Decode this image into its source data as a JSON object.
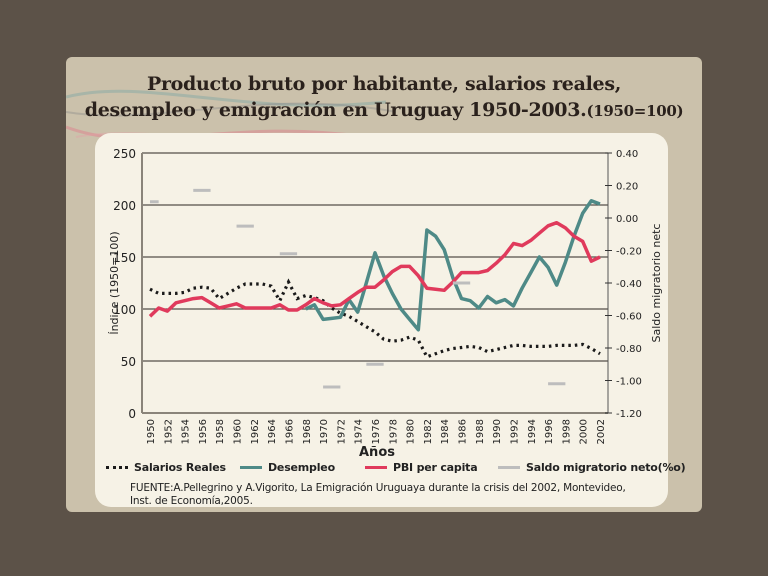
{
  "title_line1": "Producto bruto por habitante, salarios reales,",
  "title_line2": "desempleo y emigración en Uruguay 1950-2003.",
  "title_suffix": "(1950=100)",
  "source_line1": "FUENTE:A.Pellegrino y A.Vigorito, La Emigración Uruguaya durante la crisis del 2002, Montevideo,",
  "source_line2": "Inst. de Economía,2005.",
  "colors": {
    "salarios": "#1a1a1a",
    "desempleo": "#4e8a87",
    "pbi": "#e03a5c",
    "saldo": "#bdbdbd",
    "grid": "#555049"
  },
  "chart_data": {
    "type": "line",
    "title": "Producto bruto por habitante, salarios reales, desempleo y emigración en Uruguay 1950-2003.(1950=100)",
    "xlabel": "Años",
    "ylabel": "Índice (1950=100)",
    "y2label": "Saldo migratorio netc",
    "ylim": [
      0,
      250
    ],
    "y2lim": [
      -1.2,
      0.4
    ],
    "xlim": [
      1950,
      2002
    ],
    "yticks": [
      "0",
      "50",
      "100",
      "150",
      "200",
      "250"
    ],
    "y2ticks": [
      "-1.20",
      "-1.00",
      "-0.80",
      "-0.60",
      "-0.40",
      "-0.20",
      "0.00",
      "0.20",
      "0.40"
    ],
    "xticks": [
      "1950",
      "1952",
      "1954",
      "1956",
      "1958",
      "1960",
      "1962",
      "1964",
      "1966",
      "1968",
      "1970",
      "1972",
      "1974",
      "1976",
      "1978",
      "1980",
      "1982",
      "1984",
      "1986",
      "1988",
      "1990",
      "1992",
      "1994",
      "1996",
      "1998",
      "2000",
      "2002"
    ],
    "grid": "horizontal",
    "legend_position": "bottom",
    "series": [
      {
        "name": "Salarios Reales",
        "axis": "left",
        "style": "dotted",
        "x": [
          1950,
          1951,
          1952,
          1953,
          1954,
          1955,
          1956,
          1957,
          1958,
          1959,
          1960,
          1961,
          1962,
          1963,
          1964,
          1965,
          1966,
          1967,
          1968,
          1969,
          1970,
          1971,
          1972,
          1973,
          1974,
          1975,
          1976,
          1977,
          1978,
          1979,
          1980,
          1981,
          1982,
          1983,
          1984,
          1985,
          1986,
          1987,
          1988,
          1989,
          1990,
          1991,
          1992,
          1993,
          1994,
          1995,
          1996,
          1997,
          1998,
          1999,
          2000,
          2001,
          2002
        ],
        "values": [
          119,
          115,
          115,
          115,
          116,
          120,
          121,
          120,
          110,
          115,
          120,
          124,
          124,
          124,
          122,
          108,
          126,
          110,
          113,
          111,
          108,
          101,
          96,
          93,
          88,
          83,
          78,
          71,
          69,
          70,
          73,
          70,
          54,
          57,
          60,
          62,
          63,
          64,
          63,
          59,
          61,
          63,
          65,
          65,
          64,
          64,
          64,
          65,
          65,
          65,
          66,
          62,
          57
        ]
      },
      {
        "name": "Desempleo",
        "axis": "left",
        "style": "solid",
        "x": [
          1968,
          1969,
          1970,
          1971,
          1972,
          1973,
          1974,
          1975,
          1976,
          1977,
          1978,
          1979,
          1980,
          1981,
          1982,
          1983,
          1984,
          1985,
          1986,
          1987,
          1988,
          1989,
          1990,
          1991,
          1992,
          1993,
          1994,
          1995,
          1996,
          1997,
          1998,
          1999,
          2000,
          2001,
          2002
        ],
        "values": [
          100,
          104,
          90,
          91,
          92,
          109,
          97,
          125,
          154,
          132,
          115,
          100,
          90,
          80,
          176,
          170,
          157,
          130,
          110,
          108,
          101,
          112,
          106,
          109,
          103,
          120,
          135,
          150,
          140,
          123,
          145,
          170,
          192,
          204,
          201
        ]
      },
      {
        "name": "PBI per capita",
        "axis": "left",
        "style": "solid",
        "x": [
          1950,
          1951,
          1952,
          1953,
          1954,
          1955,
          1956,
          1957,
          1958,
          1959,
          1960,
          1961,
          1962,
          1963,
          1964,
          1965,
          1966,
          1967,
          1968,
          1969,
          1970,
          1971,
          1972,
          1973,
          1974,
          1975,
          1976,
          1977,
          1978,
          1979,
          1980,
          1981,
          1982,
          1983,
          1984,
          1985,
          1986,
          1987,
          1988,
          1989,
          1990,
          1991,
          1992,
          1993,
          1994,
          1995,
          1996,
          1997,
          1998,
          1999,
          2000,
          2001,
          2002
        ],
        "values": [
          93,
          101,
          98,
          106,
          108,
          110,
          111,
          106,
          101,
          103,
          105,
          101,
          101,
          101,
          101,
          104,
          99,
          99,
          104,
          110,
          106,
          103,
          104,
          110,
          116,
          121,
          121,
          128,
          136,
          141,
          141,
          132,
          120,
          119,
          118,
          126,
          135,
          135,
          135,
          137,
          144,
          152,
          163,
          161,
          166,
          173,
          180,
          183,
          178,
          170,
          165,
          146,
          150
        ]
      },
      {
        "name": "Saldo migratorio neto(%o)",
        "axis": "right",
        "style": "segments",
        "segments": [
          {
            "from": 1950,
            "to": 1951,
            "value": 0.1
          },
          {
            "from": 1955,
            "to": 1957,
            "value": 0.17
          },
          {
            "from": 1960,
            "to": 1962,
            "value": -0.05
          },
          {
            "from": 1965,
            "to": 1967,
            "value": -0.22
          },
          {
            "from": 1970,
            "to": 1972,
            "value": -1.04
          },
          {
            "from": 1975,
            "to": 1977,
            "value": -0.9
          },
          {
            "from": 1985,
            "to": 1987,
            "value": -0.4
          },
          {
            "from": 1996,
            "to": 1998,
            "value": -1.02
          }
        ]
      }
    ]
  }
}
